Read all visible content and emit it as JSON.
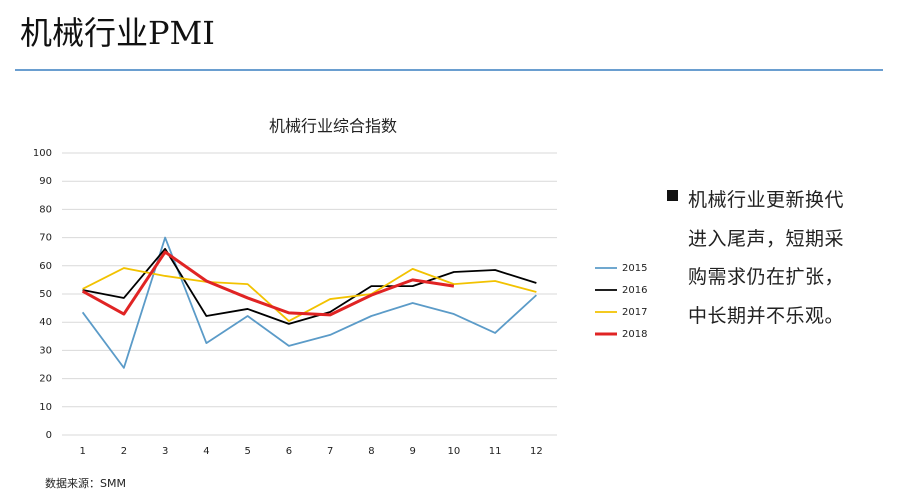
{
  "header": {
    "title": "机械行业PMI"
  },
  "bullet": "机械行业更新换代进入尾声，短期采购需求仍在扩张，中长期并不乐观。",
  "source": "数据来源：SMM",
  "chart_data": {
    "type": "line",
    "title": "机械行业综合指数",
    "categories": [
      "1",
      "2",
      "3",
      "4",
      "5",
      "6",
      "7",
      "8",
      "9",
      "10",
      "11",
      "12"
    ],
    "series": [
      {
        "name": "2015",
        "color": "#5b9bc8",
        "values": [
          43.5,
          23.8,
          70,
          32.6,
          42.2,
          31.6,
          35.5,
          42.2,
          46.8,
          42.9,
          36.2,
          49.6
        ]
      },
      {
        "name": "2016",
        "color": "#000000",
        "values": [
          51.4,
          48.6,
          66,
          42.2,
          44.7,
          39.4,
          43.6,
          52.8,
          52.8,
          57.8,
          58.5,
          53.9
        ]
      },
      {
        "name": "2017",
        "color": "#f2c200",
        "values": [
          51.8,
          59.2,
          56.4,
          54.3,
          53.5,
          40.4,
          48.2,
          50,
          58.9,
          53.5,
          54.6,
          50.7
        ]
      },
      {
        "name": "2018",
        "color": "#e02424",
        "values": [
          51,
          42.9,
          64.9,
          54.6,
          48.6,
          43.3,
          42.6,
          49.6,
          55,
          52.8,
          null,
          null
        ]
      }
    ],
    "ylim": [
      0,
      100
    ],
    "yticks": [
      0,
      10,
      20,
      30,
      40,
      50,
      60,
      70,
      80,
      90,
      100
    ],
    "grid": true,
    "legend": "right"
  }
}
